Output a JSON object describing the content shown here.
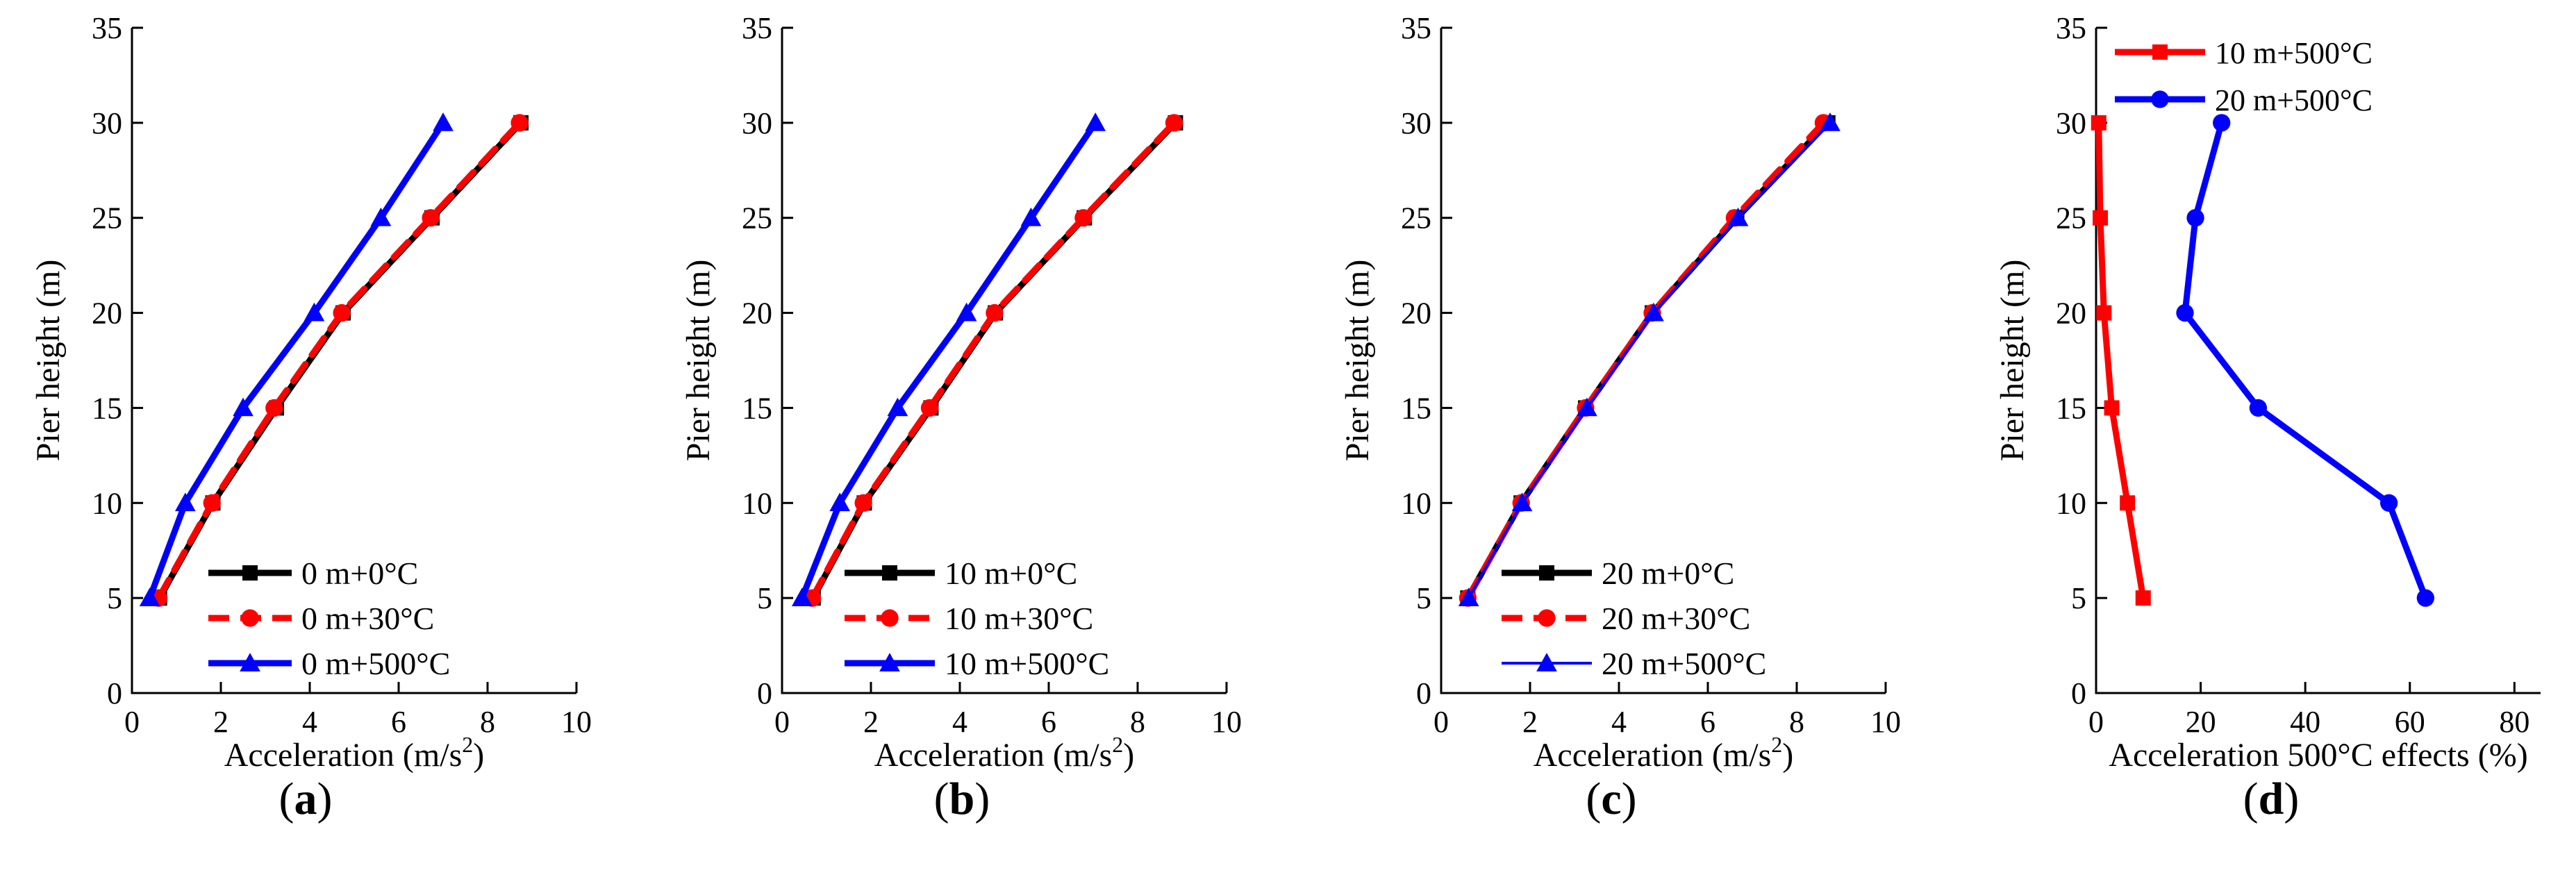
{
  "chart_data": [
    {
      "type": "line",
      "panel_label": "a",
      "xlabel": "Acceleration (m/s",
      "xlabel_sup": "2",
      "xlabel_close": ")",
      "ylabel": "Pier height (m)",
      "xlim": [
        0,
        10
      ],
      "ylim": [
        0,
        35
      ],
      "xticks": [
        "0",
        "2",
        "4",
        "6",
        "8",
        "10"
      ],
      "yticks": [
        "0",
        "5",
        "10",
        "15",
        "20",
        "25",
        "30",
        "35"
      ],
      "legend_position": "bottom-right",
      "series": [
        {
          "name": "0 m+0°C",
          "color": "#000000",
          "marker": "square",
          "dash": "solid",
          "x": [
            0.62,
            1.82,
            3.25,
            4.75,
            6.75,
            8.75
          ],
          "y": [
            5,
            10,
            15,
            20,
            25,
            30
          ]
        },
        {
          "name": "0 m+30°C",
          "color": "#ff0000",
          "marker": "circle",
          "dash": "dashed",
          "x": [
            0.6,
            1.8,
            3.2,
            4.72,
            6.72,
            8.72
          ],
          "y": [
            5,
            10,
            15,
            20,
            25,
            30
          ]
        },
        {
          "name": "0 m+500°C",
          "color": "#0000ff",
          "marker": "triangle",
          "dash": "solid",
          "x": [
            0.4,
            1.2,
            2.5,
            4.1,
            5.6,
            7.0
          ],
          "y": [
            5,
            10,
            15,
            20,
            25,
            30
          ]
        }
      ]
    },
    {
      "type": "line",
      "panel_label": "b",
      "xlabel": "Acceleration (m/s",
      "xlabel_sup": "2",
      "xlabel_close": ")",
      "ylabel": "Pier height (m)",
      "xlim": [
        0,
        10
      ],
      "ylim": [
        0,
        35
      ],
      "xticks": [
        "0",
        "2",
        "4",
        "6",
        "8",
        "10"
      ],
      "yticks": [
        "0",
        "5",
        "10",
        "15",
        "20",
        "25",
        "30",
        "35"
      ],
      "legend_position": "bottom-right",
      "series": [
        {
          "name": "10 m+0°C",
          "color": "#000000",
          "marker": "square",
          "dash": "solid",
          "x": [
            0.7,
            1.85,
            3.35,
            4.8,
            6.8,
            8.85
          ],
          "y": [
            5,
            10,
            15,
            20,
            25,
            30
          ]
        },
        {
          "name": "10 m+30°C",
          "color": "#ff0000",
          "marker": "circle",
          "dash": "dashed",
          "x": [
            0.68,
            1.83,
            3.32,
            4.78,
            6.78,
            8.82
          ],
          "y": [
            5,
            10,
            15,
            20,
            25,
            30
          ]
        },
        {
          "name": "10 m+500°C",
          "color": "#0000ff",
          "marker": "triangle",
          "dash": "solid",
          "x": [
            0.45,
            1.3,
            2.6,
            4.15,
            5.6,
            7.05
          ],
          "y": [
            5,
            10,
            15,
            20,
            25,
            30
          ]
        }
      ]
    },
    {
      "type": "line",
      "panel_label": "c",
      "xlabel": "Acceleration (m/s",
      "xlabel_sup": "2",
      "xlabel_close": ")",
      "ylabel": "Pier height (m)",
      "xlim": [
        0,
        10
      ],
      "ylim": [
        0,
        35
      ],
      "xticks": [
        "0",
        "2",
        "4",
        "6",
        "8",
        "10"
      ],
      "yticks": [
        "0",
        "5",
        "10",
        "15",
        "20",
        "25",
        "30",
        "35"
      ],
      "legend_position": "bottom-right",
      "series": [
        {
          "name": "20 m+0°C",
          "color": "#000000",
          "marker": "square",
          "dash": "solid",
          "x": [
            0.6,
            1.8,
            3.25,
            4.75,
            6.65,
            8.7
          ],
          "y": [
            5,
            10,
            15,
            20,
            25,
            30
          ]
        },
        {
          "name": "20 m+30°C",
          "color": "#ff0000",
          "marker": "circle",
          "dash": "dashed",
          "x": [
            0.6,
            1.8,
            3.25,
            4.75,
            6.6,
            8.6
          ],
          "y": [
            5,
            10,
            15,
            20,
            25,
            30
          ]
        },
        {
          "name": "20 m+500°C",
          "color": "#0000ff",
          "marker": "triangle",
          "dash": "solid",
          "thin": true,
          "x": [
            0.62,
            1.82,
            3.28,
            4.78,
            6.68,
            8.75
          ],
          "y": [
            5,
            10,
            15,
            20,
            25,
            30
          ]
        }
      ]
    },
    {
      "type": "line",
      "panel_label": "d",
      "xlabel": "Acceleration 500°C effects (%)",
      "ylabel": "Pier height (m)",
      "xlim": [
        0,
        85
      ],
      "ylim": [
        0,
        35
      ],
      "xticks": [
        "0",
        "20",
        "40",
        "60",
        "80"
      ],
      "yticks": [
        "0",
        "5",
        "10",
        "15",
        "20",
        "25",
        "30",
        "35"
      ],
      "legend_position": "top-left",
      "series": [
        {
          "name": "10 m+500°C",
          "color": "#ff0000",
          "marker": "square",
          "dash": "solid",
          "x": [
            9,
            6,
            3,
            1.5,
            0.8,
            0.5
          ],
          "y": [
            5,
            10,
            15,
            20,
            25,
            30
          ]
        },
        {
          "name": "20 m+500°C",
          "color": "#0000ff",
          "marker": "circle",
          "dash": "solid",
          "x": [
            63,
            56,
            31,
            17,
            19,
            24
          ],
          "y": [
            5,
            10,
            15,
            20,
            25,
            30
          ]
        }
      ]
    }
  ]
}
